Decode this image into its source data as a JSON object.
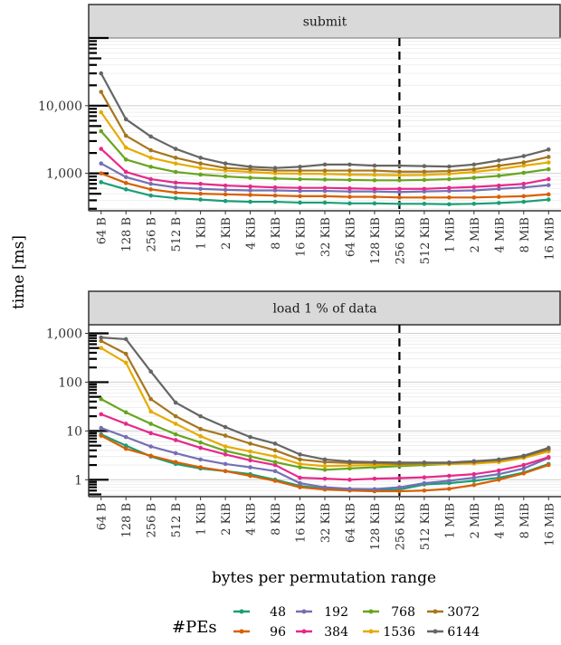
{
  "chart_data": {
    "type": "line",
    "ylabel": "time [ms]",
    "xlabel": "bytes per permutation range",
    "categories": [
      "64 B",
      "128 B",
      "256 B",
      "512 B",
      "1 KiB",
      "2 KiB",
      "4 KiB",
      "8 KiB",
      "16 KiB",
      "32 KiB",
      "64 KiB",
      "128 KiB",
      "256 KiB",
      "512 KiB",
      "1 MiB",
      "2 MiB",
      "4 MiB",
      "8 MiB",
      "16 MiB"
    ],
    "reference_line_category": "256 KiB",
    "legend": {
      "title": "#PEs",
      "position": "bottom"
    },
    "colors": {
      "48": "#1b9e77",
      "96": "#d95f02",
      "192": "#7570b3",
      "384": "#e7298a",
      "768": "#66a61e",
      "1536": "#e6ab02",
      "3072": "#a6761d",
      "6144": "#666666"
    },
    "panels": [
      {
        "title": "submit",
        "yscale": "log10",
        "ylim": [
          280,
          100000
        ],
        "yticks": [
          1000,
          10000
        ],
        "ytick_labels": [
          "1,000",
          "10,000"
        ],
        "series": [
          {
            "name": "48",
            "values": [
              740,
              580,
              470,
              430,
              410,
              390,
              380,
              380,
              370,
              370,
              360,
              360,
              355,
              355,
              350,
              355,
              365,
              380,
              410
            ]
          },
          {
            "name": "96",
            "values": [
              1000,
              720,
              580,
              520,
              500,
              490,
              480,
              470,
              460,
              460,
              450,
              450,
              440,
              440,
              440,
              440,
              450,
              460,
              490
            ]
          },
          {
            "name": "192",
            "values": [
              1400,
              880,
              700,
              620,
              590,
              570,
              560,
              560,
              550,
              550,
              540,
              540,
              530,
              540,
              550,
              560,
              590,
              620,
              670
            ]
          },
          {
            "name": "384",
            "values": [
              2300,
              1050,
              820,
              730,
              700,
              660,
              640,
              620,
              610,
              610,
              600,
              590,
              590,
              590,
              610,
              630,
              660,
              700,
              820
            ]
          },
          {
            "name": "768",
            "values": [
              4200,
              1600,
              1250,
              1050,
              960,
              900,
              860,
              840,
              820,
              810,
              800,
              790,
              790,
              800,
              820,
              860,
              920,
              1020,
              1150
            ]
          },
          {
            "name": "1536",
            "values": [
              8000,
              2400,
              1700,
              1400,
              1200,
              1100,
              1050,
              1000,
              990,
              980,
              960,
              950,
              940,
              950,
              980,
              1050,
              1150,
              1300,
              1450
            ]
          },
          {
            "name": "3072",
            "values": [
              16000,
              3600,
              2200,
              1700,
              1400,
              1200,
              1150,
              1100,
              1100,
              1100,
              1100,
              1100,
              1060,
              1060,
              1080,
              1150,
              1300,
              1450,
              1750
            ]
          },
          {
            "name": "6144",
            "values": [
              30000,
              6300,
              3500,
              2300,
              1700,
              1400,
              1250,
              1200,
              1250,
              1350,
              1350,
              1300,
              1300,
              1280,
              1260,
              1350,
              1550,
              1800,
              2250
            ]
          }
        ]
      },
      {
        "title": "load 1 % of data",
        "yscale": "log10",
        "ylim": [
          0.45,
          1500
        ],
        "yticks": [
          1,
          10,
          100,
          1000
        ],
        "ytick_labels": [
          "1",
          "10",
          "100",
          "1,000"
        ],
        "series": [
          {
            "name": "48",
            "values": [
              8.5,
              5.0,
              3.0,
              2.1,
              1.7,
              1.5,
              1.3,
              1.0,
              0.75,
              0.65,
              0.62,
              0.61,
              0.63,
              0.8,
              0.85,
              0.95,
              1.1,
              1.4,
              2.1
            ]
          },
          {
            "name": "96",
            "values": [
              8.0,
              4.3,
              3.1,
              2.3,
              1.8,
              1.5,
              1.2,
              0.95,
              0.7,
              0.63,
              0.6,
              0.58,
              0.58,
              0.6,
              0.65,
              0.78,
              1.0,
              1.35,
              2.0
            ]
          },
          {
            "name": "192",
            "values": [
              11.5,
              7.5,
              4.8,
              3.5,
              2.6,
              2.1,
              1.8,
              1.5,
              0.85,
              0.7,
              0.65,
              0.64,
              0.7,
              0.85,
              0.95,
              1.1,
              1.3,
              1.7,
              2.8
            ]
          },
          {
            "name": "384",
            "values": [
              22,
              14,
              9,
              6.5,
              4.5,
              3.3,
              2.5,
              2.0,
              1.1,
              1.05,
              1.0,
              1.05,
              1.08,
              1.12,
              1.2,
              1.3,
              1.55,
              2.0,
              2.9
            ]
          },
          {
            "name": "768",
            "values": [
              45,
              24,
              14,
              8.5,
              5.8,
              3.9,
              3.0,
              2.3,
              1.8,
              1.6,
              1.7,
              1.8,
              1.9,
              2.0,
              2.1,
              2.2,
              2.4,
              3.0,
              4.0
            ]
          },
          {
            "name": "1536",
            "values": [
              500,
              250,
              25,
              14,
              7.8,
              4.8,
              3.8,
              3.0,
              2.1,
              1.9,
              1.95,
              2.0,
              2.05,
              2.1,
              2.1,
              2.15,
              2.3,
              2.8,
              3.8
            ]
          },
          {
            "name": "3072",
            "values": [
              700,
              380,
              45,
              20,
              11,
              8,
              5.5,
              4,
              2.6,
              2.3,
              2.2,
              2.2,
              2.1,
              2.15,
              2.2,
              2.3,
              2.5,
              3.0,
              4.2
            ]
          },
          {
            "name": "6144",
            "values": [
              820,
              760,
              165,
              38,
              20,
              12,
              7.5,
              5.5,
              3.3,
              2.6,
              2.35,
              2.3,
              2.25,
              2.25,
              2.25,
              2.4,
              2.6,
              3.1,
              4.5
            ]
          }
        ]
      }
    ]
  }
}
